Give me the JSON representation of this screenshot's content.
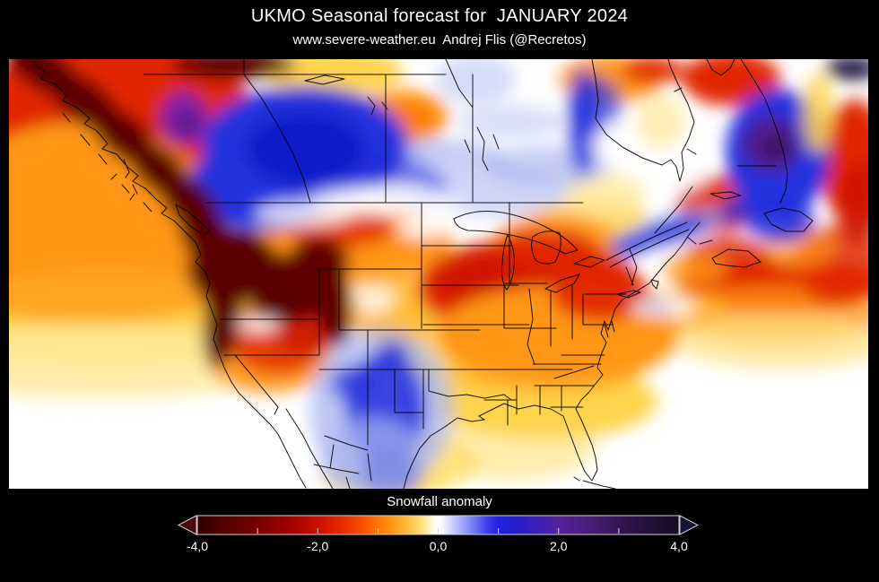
{
  "page": {
    "background": "#000000"
  },
  "header": {
    "title": "UKMO Seasonal forecast for  JANUARY 2024",
    "subtitle": "www.severe-weather.eu  Andrej Flis (@Recretos)"
  },
  "map": {
    "description": "North America snowfall anomaly color field",
    "background": "#ffffff",
    "border_color": "#000000",
    "blobs": [
      [
        120,
        60,
        150,
        90,
        "#e02800",
        1,
        0
      ],
      [
        60,
        120,
        120,
        90,
        "#e02800",
        0.9,
        0
      ],
      [
        80,
        175,
        150,
        105,
        "#ff9615",
        1,
        0
      ],
      [
        20,
        8,
        26,
        16,
        "#cc1500",
        1,
        0
      ],
      [
        110,
        290,
        210,
        55,
        "#ffd44e",
        1,
        0
      ],
      [
        90,
        248,
        170,
        45,
        "#ff9615",
        0.75,
        0
      ],
      [
        100,
        338,
        230,
        40,
        "#ffeaa0",
        0.85,
        0
      ],
      [
        360,
        14,
        80,
        26,
        "#ffd44e",
        1,
        0
      ],
      [
        520,
        300,
        115,
        70,
        "#ffd44e",
        0.9,
        0
      ],
      [
        560,
        430,
        95,
        40,
        "#ffeaa0",
        0.85,
        0
      ],
      [
        598,
        382,
        125,
        42,
        "#ffd44e",
        1,
        0
      ],
      [
        600,
        345,
        110,
        30,
        "#ffb733",
        0.85,
        0
      ],
      [
        648,
        185,
        65,
        35,
        "#ffd44e",
        0.85,
        0
      ],
      [
        655,
        150,
        55,
        25,
        "#ffeaa0",
        0.8,
        0
      ],
      [
        610,
        205,
        70,
        35,
        "#ff9615",
        0.8,
        0
      ],
      [
        385,
        205,
        110,
        42,
        "#ff9615",
        1,
        0
      ],
      [
        430,
        278,
        55,
        40,
        "#ffb733",
        0.85,
        0
      ],
      [
        290,
        332,
        70,
        40,
        "#ff9615",
        0.9,
        0
      ],
      [
        300,
        312,
        55,
        40,
        "#e02800",
        0.8,
        0
      ],
      [
        330,
        300,
        40,
        30,
        "#cc1500",
        0.75,
        0
      ],
      [
        438,
        64,
        52,
        30,
        "#ff9615",
        1,
        0
      ],
      [
        445,
        66,
        30,
        18,
        "#ff7500",
        0.85,
        0
      ],
      [
        672,
        22,
        58,
        26,
        "#ff9615",
        1,
        0
      ],
      [
        718,
        12,
        35,
        16,
        "#e02800",
        0.9,
        0
      ],
      [
        805,
        22,
        55,
        30,
        "#e02800",
        1,
        0
      ],
      [
        862,
        252,
        115,
        30,
        "#e02800",
        1,
        0
      ],
      [
        855,
        285,
        120,
        32,
        "#ff9615",
        0.8,
        0
      ],
      [
        862,
        315,
        120,
        30,
        "#ffe080",
        0.7,
        0
      ],
      [
        742,
        278,
        55,
        20,
        "#ffb733",
        0.85,
        0
      ],
      [
        925,
        230,
        50,
        45,
        "#e02800",
        0.85,
        0
      ],
      [
        880,
        210,
        40,
        25,
        "#ff9615",
        0.7,
        0
      ],
      [
        943,
        115,
        38,
        70,
        "#e02800",
        1,
        0
      ],
      [
        950,
        160,
        28,
        45,
        "#cc1500",
        0.85,
        0
      ],
      [
        790,
        162,
        45,
        32,
        "#e02800",
        0.9,
        0
      ],
      [
        800,
        222,
        48,
        24,
        "#e02800",
        0.85,
        0
      ],
      [
        765,
        235,
        35,
        18,
        "#ff9615",
        0.8,
        0
      ],
      [
        580,
        255,
        125,
        55,
        "#e02800",
        1,
        0
      ],
      [
        545,
        250,
        70,
        35,
        "#cc1500",
        0.85,
        0
      ],
      [
        612,
        308,
        135,
        55,
        "#ff9615",
        1,
        0
      ],
      [
        660,
        262,
        55,
        30,
        "#e02800",
        0.95,
        0
      ],
      [
        600,
        212,
        60,
        25,
        "#e02800",
        0.75,
        0
      ],
      [
        370,
        188,
        60,
        22,
        "#e02800",
        0.8,
        0
      ],
      [
        420,
        468,
        70,
        22,
        "#ffd44e",
        0.9,
        0
      ],
      [
        470,
        450,
        55,
        28,
        "#ffe06a",
        0.8,
        0
      ],
      [
        462,
        112,
        95,
        22,
        "#aab6f0",
        0.85,
        0
      ],
      [
        540,
        148,
        85,
        26,
        "#cfd6f7",
        1,
        0
      ],
      [
        500,
        120,
        60,
        20,
        "#cfd6f7",
        0.7,
        0
      ],
      [
        600,
        120,
        70,
        22,
        "#aab6f0",
        0.7,
        0
      ],
      [
        560,
        70,
        60,
        20,
        "#cfd6f7",
        0.75,
        0
      ],
      [
        520,
        22,
        45,
        28,
        "#cfd6f7",
        0.85,
        0
      ],
      [
        330,
        95,
        115,
        65,
        "#2230dd",
        1,
        0
      ],
      [
        285,
        140,
        85,
        50,
        "#2230dd",
        1,
        0
      ],
      [
        330,
        100,
        65,
        40,
        "#101ac8",
        1,
        0
      ],
      [
        440,
        135,
        55,
        26,
        "#2230dd",
        0.55,
        20
      ],
      [
        640,
        70,
        17,
        60,
        "#2230dd",
        0.85,
        0
      ],
      [
        655,
        55,
        28,
        35,
        "#2230dd",
        0.7,
        0
      ],
      [
        415,
        390,
        80,
        90,
        "#aab6f0",
        0.75,
        0
      ],
      [
        420,
        390,
        45,
        65,
        "#2230dd",
        0.85,
        0
      ],
      [
        425,
        462,
        35,
        25,
        "#101ac8",
        0.8,
        0
      ],
      [
        384,
        362,
        26,
        20,
        "#2230dd",
        0.7,
        0
      ],
      [
        405,
        445,
        60,
        45,
        "#aab6f0",
        0.7,
        0
      ],
      [
        428,
        330,
        18,
        16,
        "#2230dd",
        0.7,
        0
      ],
      [
        735,
        192,
        62,
        18,
        "#aab6f0",
        0.8,
        -16
      ],
      [
        735,
        192,
        50,
        11,
        "#2230dd",
        1,
        -16
      ],
      [
        690,
        208,
        20,
        12,
        "#2230dd",
        0.75,
        0
      ],
      [
        818,
        168,
        30,
        14,
        "#2230dd",
        0.8,
        -12
      ],
      [
        857,
        105,
        58,
        72,
        "#2230dd",
        1,
        0
      ],
      [
        860,
        180,
        38,
        24,
        "#2230dd",
        0.9,
        0
      ],
      [
        40,
        12,
        48,
        22,
        "#5a0000",
        1,
        35
      ],
      [
        85,
        48,
        46,
        23,
        "#5a0000",
        1,
        38
      ],
      [
        128,
        86,
        44,
        23,
        "#5a0000",
        1,
        40
      ],
      [
        168,
        124,
        42,
        23,
        "#5a0000",
        1,
        42
      ],
      [
        202,
        162,
        40,
        24,
        "#5a0000",
        1,
        45
      ],
      [
        220,
        198,
        34,
        26,
        "#5a0000",
        1,
        50
      ],
      [
        228,
        235,
        30,
        30,
        "#600000",
        1,
        0
      ],
      [
        250,
        6,
        70,
        16,
        "#5a0000",
        1,
        0
      ],
      [
        255,
        228,
        45,
        38,
        "#5a0000",
        1,
        0
      ],
      [
        240,
        252,
        30,
        30,
        "#5a0000",
        1,
        0
      ],
      [
        310,
        255,
        48,
        38,
        "#5a0000",
        1,
        0
      ],
      [
        345,
        228,
        35,
        30,
        "#600000",
        1,
        0
      ],
      [
        238,
        290,
        20,
        55,
        "#5a0000",
        1,
        8
      ],
      [
        362,
        272,
        20,
        48,
        "#600000",
        1,
        -5
      ],
      [
        195,
        66,
        26,
        30,
        "#7a22aa",
        1,
        0
      ],
      [
        198,
        72,
        13,
        14,
        "#5c1580",
        0.9,
        0
      ],
      [
        850,
        95,
        32,
        32,
        "#511d90",
        1,
        0
      ],
      [
        855,
        98,
        16,
        14,
        "#3a1358",
        1,
        0
      ],
      [
        902,
        60,
        17,
        45,
        "#ffd44e",
        0.85,
        0
      ],
      [
        940,
        10,
        30,
        13,
        "#221740",
        1,
        0
      ],
      [
        700,
        95,
        48,
        28,
        "#ffffff",
        0.9,
        0
      ],
      [
        742,
        122,
        38,
        26,
        "#ffffff",
        0.85,
        0
      ],
      [
        726,
        70,
        28,
        30,
        "#ffeaa0",
        0.75,
        0
      ],
      [
        420,
        158,
        85,
        16,
        "#ffffff",
        0.85,
        0
      ],
      [
        330,
        172,
        55,
        14,
        "#ffffff",
        0.8,
        0
      ],
      [
        462,
        188,
        28,
        12,
        "#ffffff",
        0.9,
        0
      ],
      [
        278,
        296,
        24,
        7,
        "#ffffff",
        0.95,
        0
      ],
      [
        408,
        268,
        22,
        14,
        "#ffffff",
        0.8,
        0
      ],
      [
        730,
        277,
        36,
        9,
        "#ffffff",
        0.95,
        0
      ],
      [
        722,
        276,
        18,
        6,
        "#aab6f0",
        0.85,
        0
      ]
    ]
  },
  "colorbar": {
    "label": "Snowfall anomaly",
    "min": -4,
    "max": 4,
    "tick_labels": [
      "-4,0",
      "-2,0",
      "0,0",
      "2,0",
      "4,0"
    ],
    "tick_values": [
      -4,
      -2,
      0,
      2,
      4
    ],
    "minor_tick_values": [
      -3,
      -2,
      -1,
      0,
      1,
      2,
      3
    ],
    "left_arrow_color": "#4a0808",
    "right_arrow_color": "#181434",
    "frame_color": "#cccccc",
    "tick_color": "#dddddd",
    "gradient_stops": [
      [
        0,
        "#2e0000"
      ],
      [
        0.04,
        "#4a0000"
      ],
      [
        0.125,
        "#780000"
      ],
      [
        0.2,
        "#a50300"
      ],
      [
        0.25,
        "#cc0f00"
      ],
      [
        0.3,
        "#e82a00"
      ],
      [
        0.35,
        "#fe5700"
      ],
      [
        0.4,
        "#ff9212"
      ],
      [
        0.44,
        "#ffc143"
      ],
      [
        0.47,
        "#ffe388"
      ],
      [
        0.495,
        "#ffffff"
      ],
      [
        0.505,
        "#ffffff"
      ],
      [
        0.53,
        "#c9cfff"
      ],
      [
        0.56,
        "#8e96f8"
      ],
      [
        0.6,
        "#4040ee"
      ],
      [
        0.625,
        "#2020dd"
      ],
      [
        0.67,
        "#281ec8"
      ],
      [
        0.72,
        "#4520ad"
      ],
      [
        0.75,
        "#53229c"
      ],
      [
        0.8,
        "#4b1f83"
      ],
      [
        0.875,
        "#351656"
      ],
      [
        0.94,
        "#221037"
      ],
      [
        1,
        "#140d22"
      ]
    ]
  }
}
